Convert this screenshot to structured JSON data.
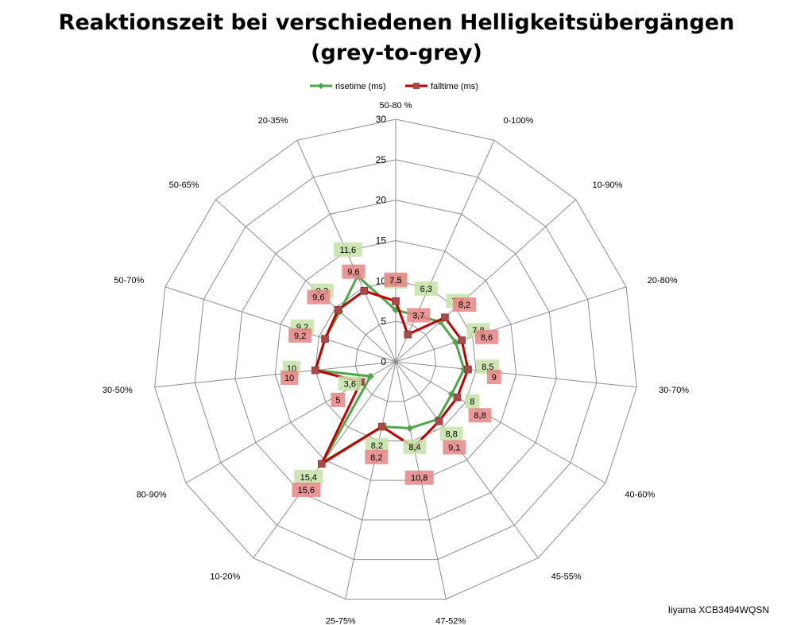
{
  "chart_data": {
    "type": "radar",
    "title_lines": [
      "Reaktionszeit bei verschiedenen Helligkeitsübergängen",
      "(grey-to-grey)"
    ],
    "categories": [
      "50-80 %",
      "0-100%",
      "10-90%",
      "20-80%",
      "30-70%",
      "40-60%",
      "45-55%",
      "47-52%",
      "25-75%",
      "10-20%",
      "80-90%",
      "30-50%",
      "50-70%",
      "50-65%",
      "20-35%"
    ],
    "radial_ticks": [
      "0",
      "5",
      "10",
      "15",
      "20",
      "25",
      "30"
    ],
    "rlim": [
      0,
      30
    ],
    "grid": true,
    "legend_position": "top",
    "series": [
      {
        "name": "risetime (ms)",
        "color": "#4ea64a",
        "label_bg": "#c6e2a6",
        "marker": "diamond",
        "values": [
          6.4,
          6.3,
          7.4,
          7.8,
          8.5,
          8,
          8.8,
          8.4,
          8.2,
          15.4,
          3.6,
          10,
          9.2,
          9.3,
          11.6
        ],
        "labels": [
          "6,4",
          "6,3",
          "7,4",
          "7,8",
          "8,5",
          "8",
          "8,8",
          "8,4",
          "8,2",
          "15,4",
          "3,6",
          "10",
          "9,2",
          "9,3",
          "11,6"
        ]
      },
      {
        "name": "falltime (ms)",
        "color": "#c00000",
        "label_bg": "#e58585",
        "marker": "square",
        "values": [
          7.5,
          3.7,
          8.2,
          8.6,
          9,
          8.8,
          9.1,
          10.8,
          8.2,
          15.6,
          5,
          10,
          9.2,
          9.6,
          9.6
        ],
        "labels": [
          "7,5",
          "3,7",
          "8,2",
          "8,6",
          "9",
          "8,8",
          "9,1",
          "10,8",
          "8,2",
          "15,6",
          "5",
          "10",
          "9,2",
          "9,6",
          "9,6"
        ]
      }
    ]
  },
  "caption": "Iiyama XCB3494WQSN"
}
